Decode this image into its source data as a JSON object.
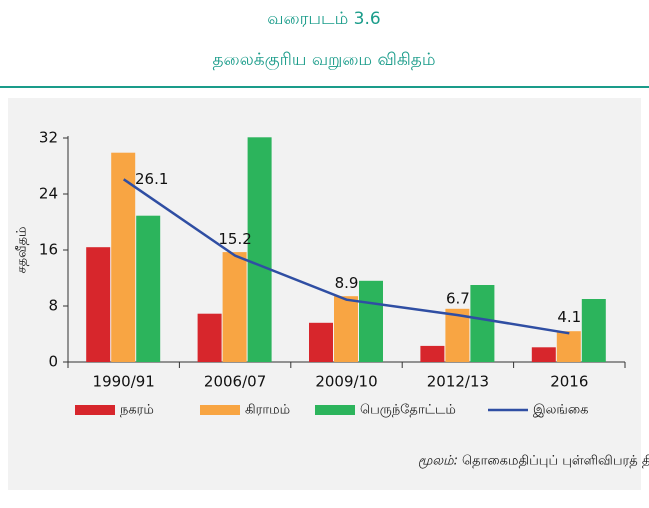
{
  "chart_data": {
    "type": "bar",
    "caption": "வரைபடம் 3.6",
    "title": "தலைக்குரிய வறுமை விகிதம்",
    "y_label": "சதவீதம்",
    "categories": [
      "1990/91",
      "2006/07",
      "2009/10",
      "2012/13",
      "2016"
    ],
    "series": [
      {
        "name": "நகரம்",
        "color": "#d7262c",
        "values": [
          16.4,
          6.9,
          5.6,
          2.3,
          2.1
        ]
      },
      {
        "name": "கிராமம்",
        "color": "#f8a543",
        "values": [
          29.9,
          15.7,
          9.4,
          7.6,
          4.4
        ]
      },
      {
        "name": "பெருந்தோட்டம்",
        "color": "#2cb45c",
        "values": [
          20.9,
          32.1,
          11.6,
          11.0,
          9.0
        ]
      },
      {
        "name": "இலங்கை",
        "type": "line",
        "color": "#2f4ea3",
        "values": [
          26.1,
          15.2,
          8.9,
          6.7,
          4.1
        ]
      }
    ],
    "ylim": [
      0,
      32
    ],
    "yticks": [
      0,
      8,
      16,
      24,
      32
    ],
    "source_label": "மூலம்:",
    "source_text": "தொகைமதிப்புப் புள்ளிவிபரத் திணைக்களம்"
  }
}
